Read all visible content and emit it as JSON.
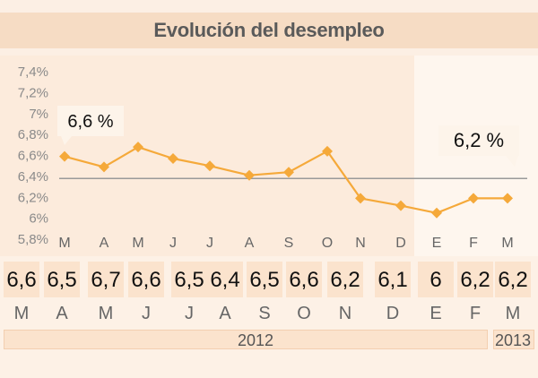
{
  "title": "Evolución del desempleo",
  "callouts": {
    "first": "6,6 %",
    "last": "6,2 %"
  },
  "years": {
    "y2012": "2012",
    "y2013": "2013"
  },
  "colors": {
    "line": "#f5a93a",
    "marker": "#f5a93a",
    "reference": "#9a9a9a",
    "highlight": "#fef6ee"
  },
  "chart_data": {
    "type": "line",
    "title": "Evolución del desempleo",
    "categories": [
      "M",
      "A",
      "M",
      "J",
      "J",
      "A",
      "S",
      "O",
      "N",
      "D",
      "E",
      "F",
      "M"
    ],
    "series": [
      {
        "values": [
          6.59,
          6.49,
          6.68,
          6.57,
          6.5,
          6.41,
          6.44,
          6.64,
          6.19,
          6.12,
          6.05,
          6.19,
          6.19
        ]
      }
    ],
    "data_labels": [
      "6,6",
      "6,5",
      "6,7",
      "6,6",
      "6,5",
      "6,4",
      "6,5",
      "6,6",
      "6,2",
      "6,1",
      "6",
      "6,2",
      "6,2"
    ],
    "yticks": [
      {
        "v": 7.4,
        "label": "7,4%"
      },
      {
        "v": 7.2,
        "label": "7,2%"
      },
      {
        "v": 7.0,
        "label": "7%"
      },
      {
        "v": 6.8,
        "label": "6,8%"
      },
      {
        "v": 6.6,
        "label": "6,6%"
      },
      {
        "v": 6.4,
        "label": "6,4%"
      },
      {
        "v": 6.2,
        "label": "6,2%"
      },
      {
        "v": 6.0,
        "label": "6%"
      },
      {
        "v": 5.8,
        "label": "5,8%"
      }
    ],
    "reference_line": 6.38,
    "ylim": [
      5.8,
      7.45
    ],
    "years": [
      "2012",
      "2013"
    ],
    "grid": false
  }
}
